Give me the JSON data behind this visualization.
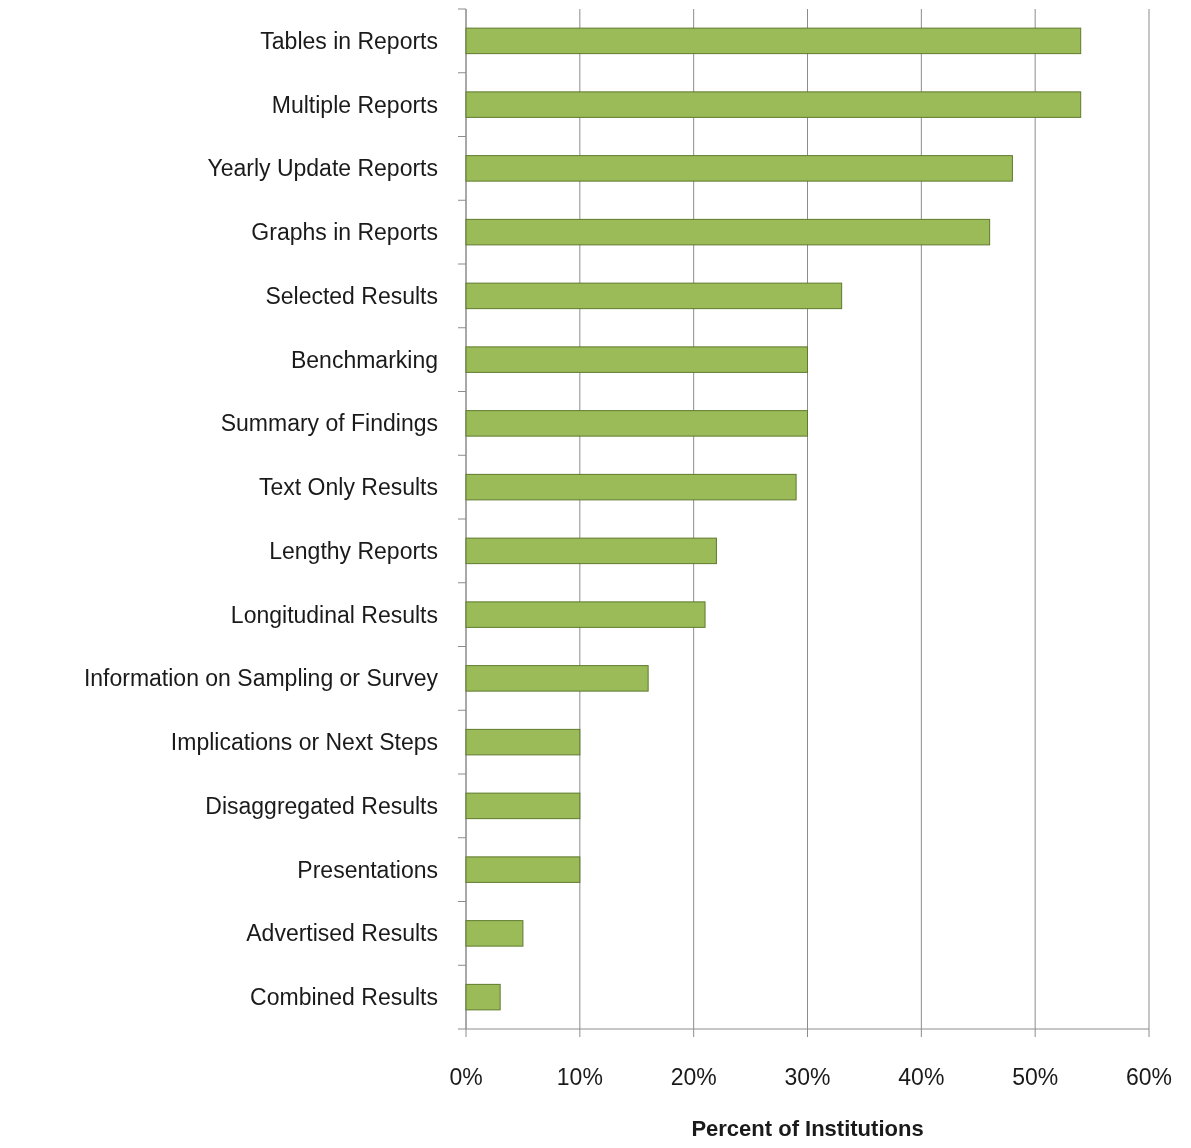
{
  "chart_data": {
    "type": "bar",
    "orientation": "horizontal",
    "xlabel": "Percent of Institutions",
    "categories": [
      "Tables in Reports",
      "Multiple Reports",
      "Yearly Update Reports",
      "Graphs in Reports",
      "Selected Results",
      "Benchmarking",
      "Summary of Findings",
      "Text Only Results",
      "Lengthy Reports",
      "Longitudinal Results",
      "Information on Sampling or Survey",
      "Implications or Next Steps",
      "Disaggregated Results",
      "Presentations",
      "Advertised Results",
      "Combined Results"
    ],
    "values": [
      54,
      54,
      48,
      46,
      33,
      30,
      30,
      29,
      22,
      21,
      16,
      10,
      10,
      10,
      5,
      3
    ],
    "color": "#9bbb59",
    "xlim": [
      0,
      60
    ],
    "xticks": [
      {
        "value": 0,
        "label": "0%"
      },
      {
        "value": 10,
        "label": "10%"
      },
      {
        "value": 20,
        "label": "20%"
      },
      {
        "value": 30,
        "label": "30%"
      },
      {
        "value": 40,
        "label": "40%"
      },
      {
        "value": 50,
        "label": "50%"
      },
      {
        "value": 60,
        "label": "60%"
      }
    ],
    "grid": "x"
  }
}
